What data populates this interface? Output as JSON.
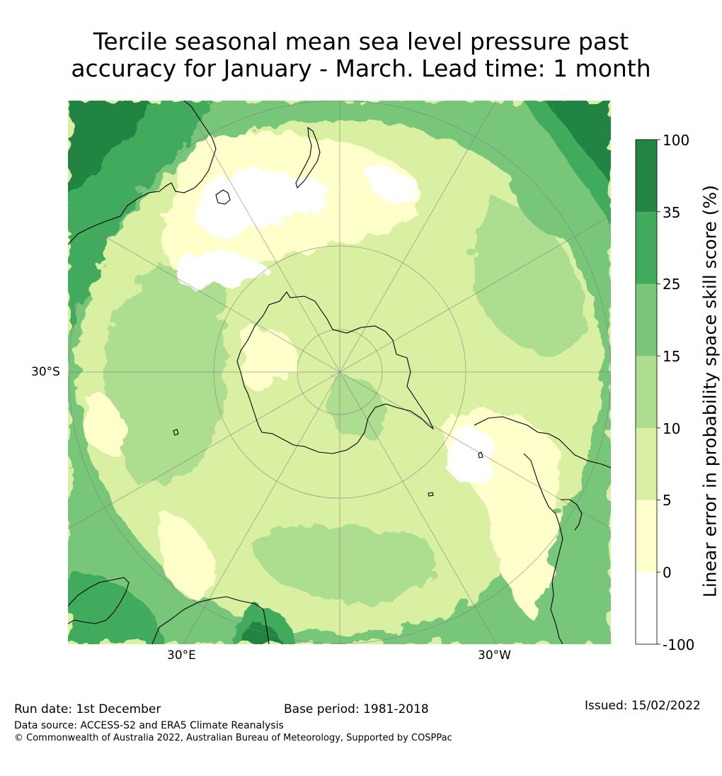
{
  "title_line1": "Tercile seasonal mean sea level pressure past",
  "title_line2": "accuracy for January - March. Lead time: 1 month",
  "map": {
    "lat_label": "30°S",
    "lon_labels": [
      "30°E",
      "30°W"
    ],
    "projection": "south-polar-stereographic"
  },
  "colorbar": {
    "title": "Linear error in probability space skill score (%)",
    "ticks": [
      "100",
      "35",
      "25",
      "15",
      "10",
      "5",
      "0",
      "-100"
    ],
    "bins": [
      {
        "range": "35 to 100",
        "color": "#238443"
      },
      {
        "range": "25 to 35",
        "color": "#41ab5d"
      },
      {
        "range": "15 to 25",
        "color": "#78c679"
      },
      {
        "range": "10 to 15",
        "color": "#addd8e"
      },
      {
        "range": "5 to 10",
        "color": "#d9f0a3"
      },
      {
        "range": "0 to 5",
        "color": "#ffffcc"
      },
      {
        "range": "-100 to 0",
        "color": "#ffffff"
      }
    ]
  },
  "footer": {
    "run_date": "Run date: 1st December",
    "base_period": "Base period: 1981-2018",
    "issued": "Issued: 15/02/2022",
    "data_source": "Data source: ACCESS-S2 and ERA5 Climate Reanalysis",
    "copyright": "© Commonwealth of Australia 2022, Australian Bureau of Meteorology, Supported by COSPPac"
  }
}
